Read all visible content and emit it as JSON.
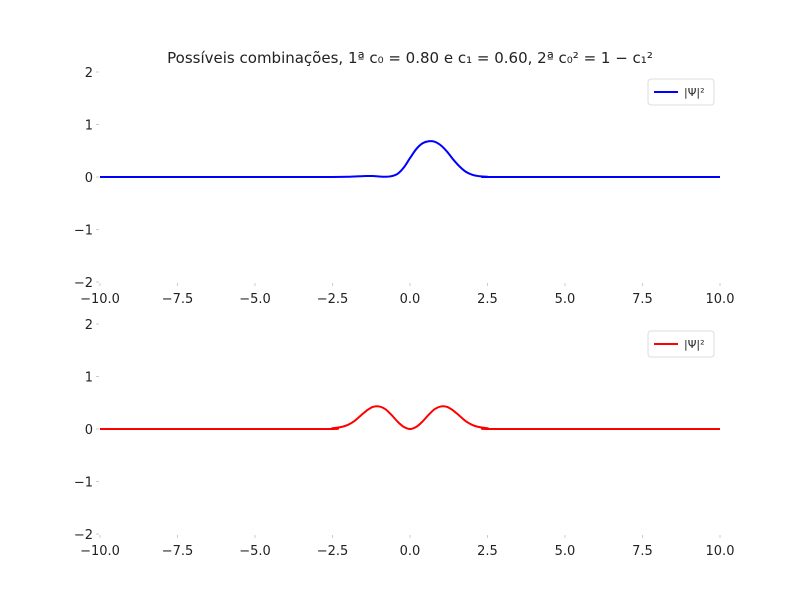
{
  "figure": {
    "title": "Possíveis combinações, 1ª c₀ = 0.80 e c₁ = 0.60, 2ª c₀² = 1 − c₁²",
    "background": "#ffffff"
  },
  "chart_data": [
    {
      "type": "line",
      "title": "Possíveis combinações, 1ª c₀ = 0.80 e c₁ = 0.60, 2ª c₀² = 1 − c₁²",
      "xlabel": "",
      "ylabel": "",
      "xlim": [
        -10,
        10
      ],
      "ylim": [
        -2,
        2
      ],
      "xticks": [
        -10.0,
        -7.5,
        -5.0,
        -2.5,
        0.0,
        2.5,
        5.0,
        7.5,
        10.0
      ],
      "xtick_labels": [
        "−10.0",
        "−7.5",
        "−5.0",
        "−2.5",
        "0.0",
        "2.5",
        "5.0",
        "7.5",
        "10.0"
      ],
      "yticks": [
        2,
        1,
        0,
        -1,
        -2
      ],
      "ytick_labels": [
        "2",
        "1",
        "0",
        "−1",
        "−2"
      ],
      "grid": false,
      "legend": "top-right",
      "series": [
        {
          "name": "|Ψ|²",
          "color": "#0000ff",
          "x": [
            -10,
            -3.0,
            -2.5,
            -2.0,
            -1.6,
            -1.4,
            -1.2,
            -1.0,
            -0.8,
            -0.6,
            -0.4,
            -0.2,
            0.0,
            0.2,
            0.4,
            0.6,
            0.8,
            1.0,
            1.2,
            1.4,
            1.6,
            1.8,
            2.0,
            2.2,
            2.5,
            3.0,
            10
          ],
          "y": [
            0,
            0.0,
            0.0,
            0.005,
            0.015,
            0.02,
            0.018,
            0.01,
            0.005,
            0.015,
            0.06,
            0.18,
            0.36,
            0.53,
            0.64,
            0.68,
            0.67,
            0.6,
            0.48,
            0.33,
            0.2,
            0.1,
            0.045,
            0.018,
            0.004,
            0.0,
            0
          ]
        }
      ]
    },
    {
      "type": "line",
      "title": "",
      "xlabel": "",
      "ylabel": "",
      "xlim": [
        -10,
        10
      ],
      "ylim": [
        -2,
        2
      ],
      "xticks": [
        -10.0,
        -7.5,
        -5.0,
        -2.5,
        0.0,
        2.5,
        5.0,
        7.5,
        10.0
      ],
      "xtick_labels": [
        "−10.0",
        "−7.5",
        "−5.0",
        "−2.5",
        "0.0",
        "2.5",
        "5.0",
        "7.5",
        "10.0"
      ],
      "yticks": [
        2,
        1,
        0,
        -1,
        -2
      ],
      "ytick_labels": [
        "2",
        "1",
        "0",
        "−1",
        "−2"
      ],
      "grid": false,
      "legend": "top-right",
      "series": [
        {
          "name": "|Ψ|²",
          "color": "#ff0000",
          "x": [
            -10,
            -3.0,
            -2.5,
            -2.2,
            -2.0,
            -1.8,
            -1.6,
            -1.4,
            -1.2,
            -1.0,
            -0.8,
            -0.6,
            -0.4,
            -0.2,
            0.0,
            0.2,
            0.4,
            0.6,
            0.8,
            1.0,
            1.2,
            1.4,
            1.6,
            1.8,
            2.0,
            2.2,
            2.5,
            3.0,
            10
          ],
          "y": [
            0,
            0.0,
            0.015,
            0.04,
            0.08,
            0.15,
            0.25,
            0.35,
            0.42,
            0.43,
            0.38,
            0.27,
            0.14,
            0.04,
            0.0,
            0.04,
            0.14,
            0.27,
            0.38,
            0.43,
            0.42,
            0.35,
            0.25,
            0.15,
            0.08,
            0.04,
            0.015,
            0.0,
            0
          ]
        }
      ]
    }
  ]
}
